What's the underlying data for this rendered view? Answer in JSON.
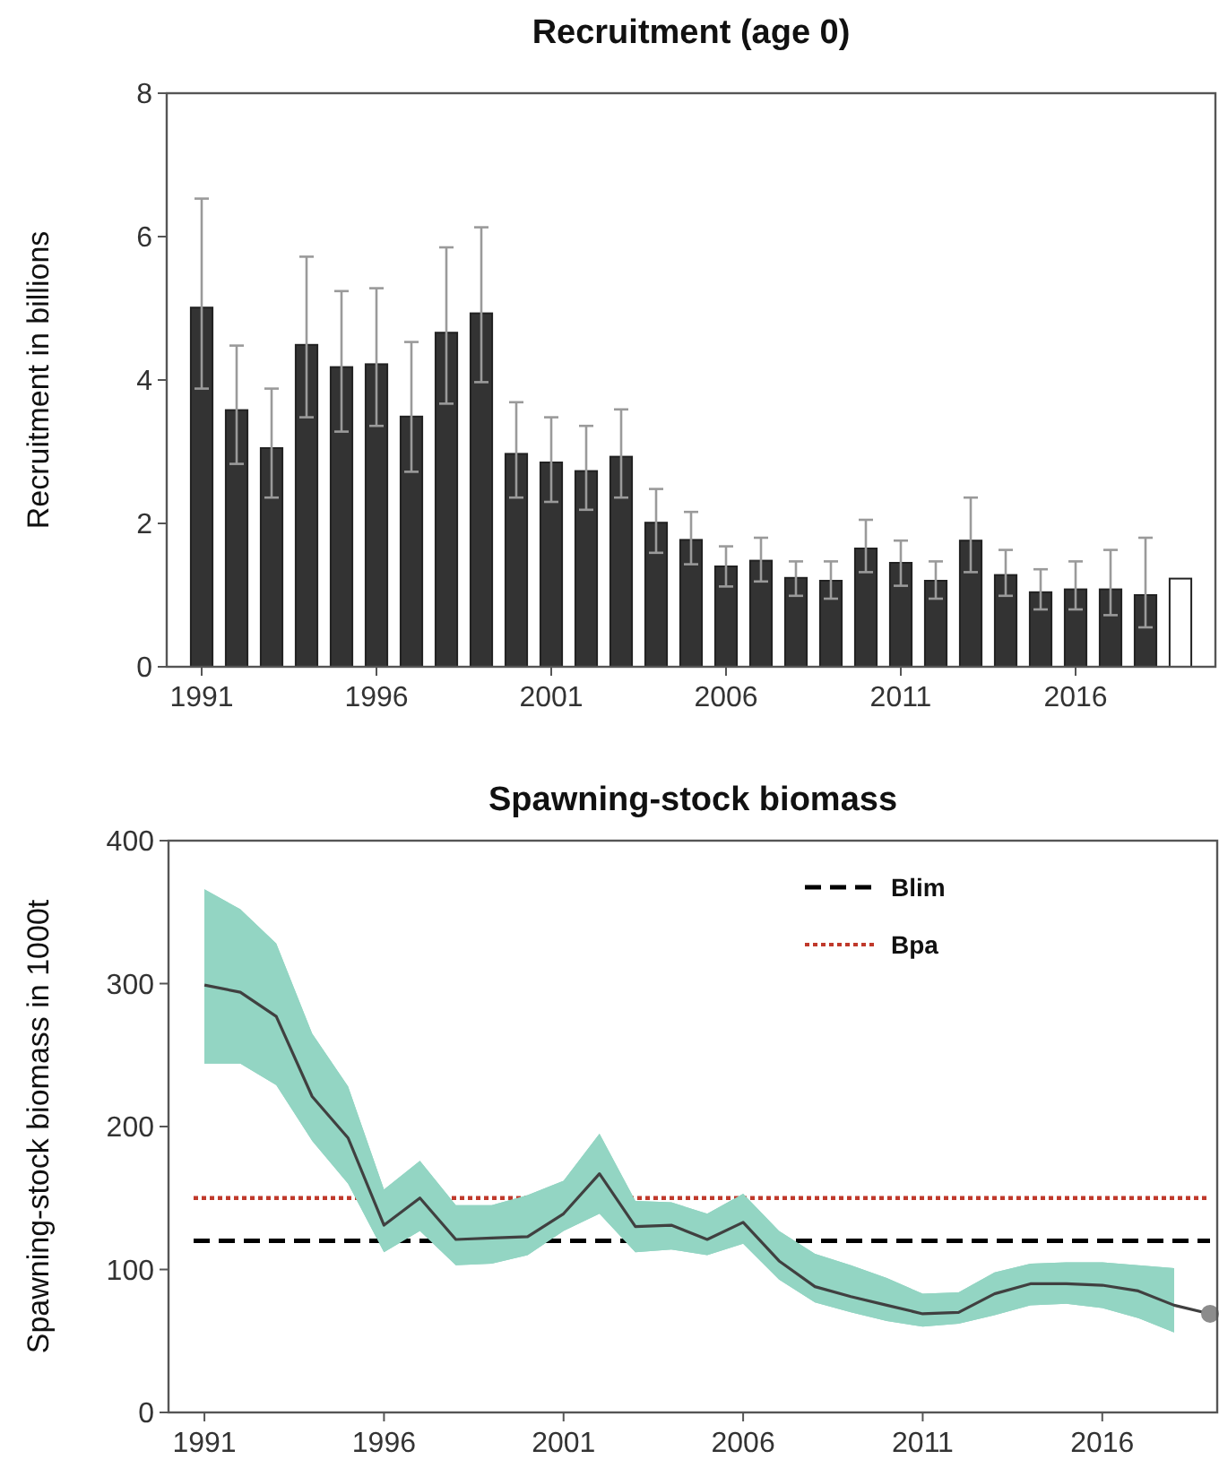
{
  "chart_data": [
    {
      "type": "bar",
      "title": "Recruitment (age 0)",
      "ylabel": "Recruitment in billions",
      "x": [
        1991,
        1992,
        1993,
        1994,
        1995,
        1996,
        1997,
        1998,
        1999,
        2000,
        2001,
        2002,
        2003,
        2004,
        2005,
        2006,
        2007,
        2008,
        2009,
        2010,
        2011,
        2012,
        2013,
        2014,
        2015,
        2016,
        2017,
        2018,
        2019
      ],
      "values": [
        5.01,
        3.58,
        3.05,
        4.49,
        4.18,
        4.22,
        3.49,
        4.66,
        4.93,
        2.97,
        2.85,
        2.73,
        2.93,
        2.01,
        1.77,
        1.4,
        1.48,
        1.24,
        1.2,
        1.65,
        1.45,
        1.2,
        1.76,
        1.28,
        1.04,
        1.08,
        1.08,
        1.0,
        1.23
      ],
      "colors": [
        "#333333",
        "#333333",
        "#333333",
        "#333333",
        "#333333",
        "#333333",
        "#333333",
        "#333333",
        "#333333",
        "#333333",
        "#333333",
        "#333333",
        "#333333",
        "#333333",
        "#333333",
        "#333333",
        "#333333",
        "#333333",
        "#333333",
        "#333333",
        "#333333",
        "#333333",
        "#333333",
        "#333333",
        "#333333",
        "#333333",
        "#333333",
        "#333333",
        "#ffffff"
      ],
      "errors": [
        [
          3.88,
          6.53
        ],
        [
          2.83,
          4.48
        ],
        [
          2.36,
          3.88
        ],
        [
          3.48,
          5.72
        ],
        [
          3.28,
          5.24
        ],
        [
          3.36,
          5.28
        ],
        [
          2.72,
          4.53
        ],
        [
          3.67,
          5.85
        ],
        [
          3.97,
          6.13
        ],
        [
          2.36,
          3.69
        ],
        [
          2.3,
          3.48
        ],
        [
          2.19,
          3.36
        ],
        [
          2.36,
          3.59
        ],
        [
          1.59,
          2.48
        ],
        [
          1.43,
          2.16
        ],
        [
          1.12,
          1.68
        ],
        [
          1.19,
          1.8
        ],
        [
          0.99,
          1.47
        ],
        [
          0.95,
          1.47
        ],
        [
          1.32,
          2.05
        ],
        [
          1.13,
          1.76
        ],
        [
          0.95,
          1.47
        ],
        [
          1.32,
          2.36
        ],
        [
          0.99,
          1.63
        ],
        [
          0.8,
          1.36
        ],
        [
          0.8,
          1.47
        ],
        [
          0.72,
          1.63
        ],
        [
          0.55,
          1.8
        ],
        null
      ],
      "xlim": [
        1990,
        2020
      ],
      "xticks": [
        1991,
        1996,
        2001,
        2006,
        2011,
        2016
      ],
      "ylim": [
        0,
        8
      ],
      "yticks": [
        0,
        2,
        4,
        6,
        8
      ]
    },
    {
      "type": "line",
      "title": "Spawning-stock biomass",
      "ylabel": "Spawning-stock biomass in 1000t",
      "x": [
        1991,
        1992,
        1993,
        1994,
        1995,
        1996,
        1997,
        1998,
        1999,
        2000,
        2001,
        2002,
        2003,
        2004,
        2005,
        2006,
        2007,
        2008,
        2009,
        2010,
        2011,
        2012,
        2013,
        2014,
        2015,
        2016,
        2017,
        2018,
        2019
      ],
      "series": [
        {
          "color": "#404040",
          "values": [
            299,
            294,
            277,
            221,
            192,
            131,
            150,
            121,
            122,
            123,
            139,
            167,
            130,
            131,
            121,
            133,
            106,
            88,
            81,
            75,
            69,
            70,
            83,
            90,
            90,
            89,
            85,
            75,
            69
          ],
          "lower": [
            244,
            244,
            229,
            190,
            160,
            112,
            127,
            103,
            104,
            110,
            127,
            139,
            112,
            114,
            110,
            118,
            93,
            77,
            70,
            64,
            60,
            62,
            68,
            75,
            76,
            73,
            66,
            56,
            null
          ],
          "upper": [
            366,
            352,
            328,
            265,
            228,
            156,
            176,
            145,
            145,
            152,
            162,
            195,
            148,
            147,
            139,
            153,
            127,
            111,
            103,
            94,
            83,
            84,
            98,
            104,
            105,
            105,
            103,
            101,
            null
          ]
        },
        {
          "type": "scatter",
          "x": [
            2019
          ],
          "values": [
            69
          ],
          "color": "#8c8c8c"
        }
      ],
      "ref_lines": [
        {
          "axis": "y",
          "value": 120,
          "label": "Blim",
          "color": "#000000",
          "line_style": "dashed"
        },
        {
          "axis": "y",
          "value": 150,
          "label": "Bpa",
          "color": "#c0392b",
          "line_style": "dotted"
        }
      ],
      "legend": "top right",
      "xlim": [
        1990,
        2019.2
      ],
      "xticks": [
        1991,
        1996,
        2001,
        2006,
        2011,
        2016
      ],
      "ylim": [
        0,
        400
      ],
      "yticks": [
        0,
        100,
        200,
        300,
        400
      ]
    }
  ]
}
